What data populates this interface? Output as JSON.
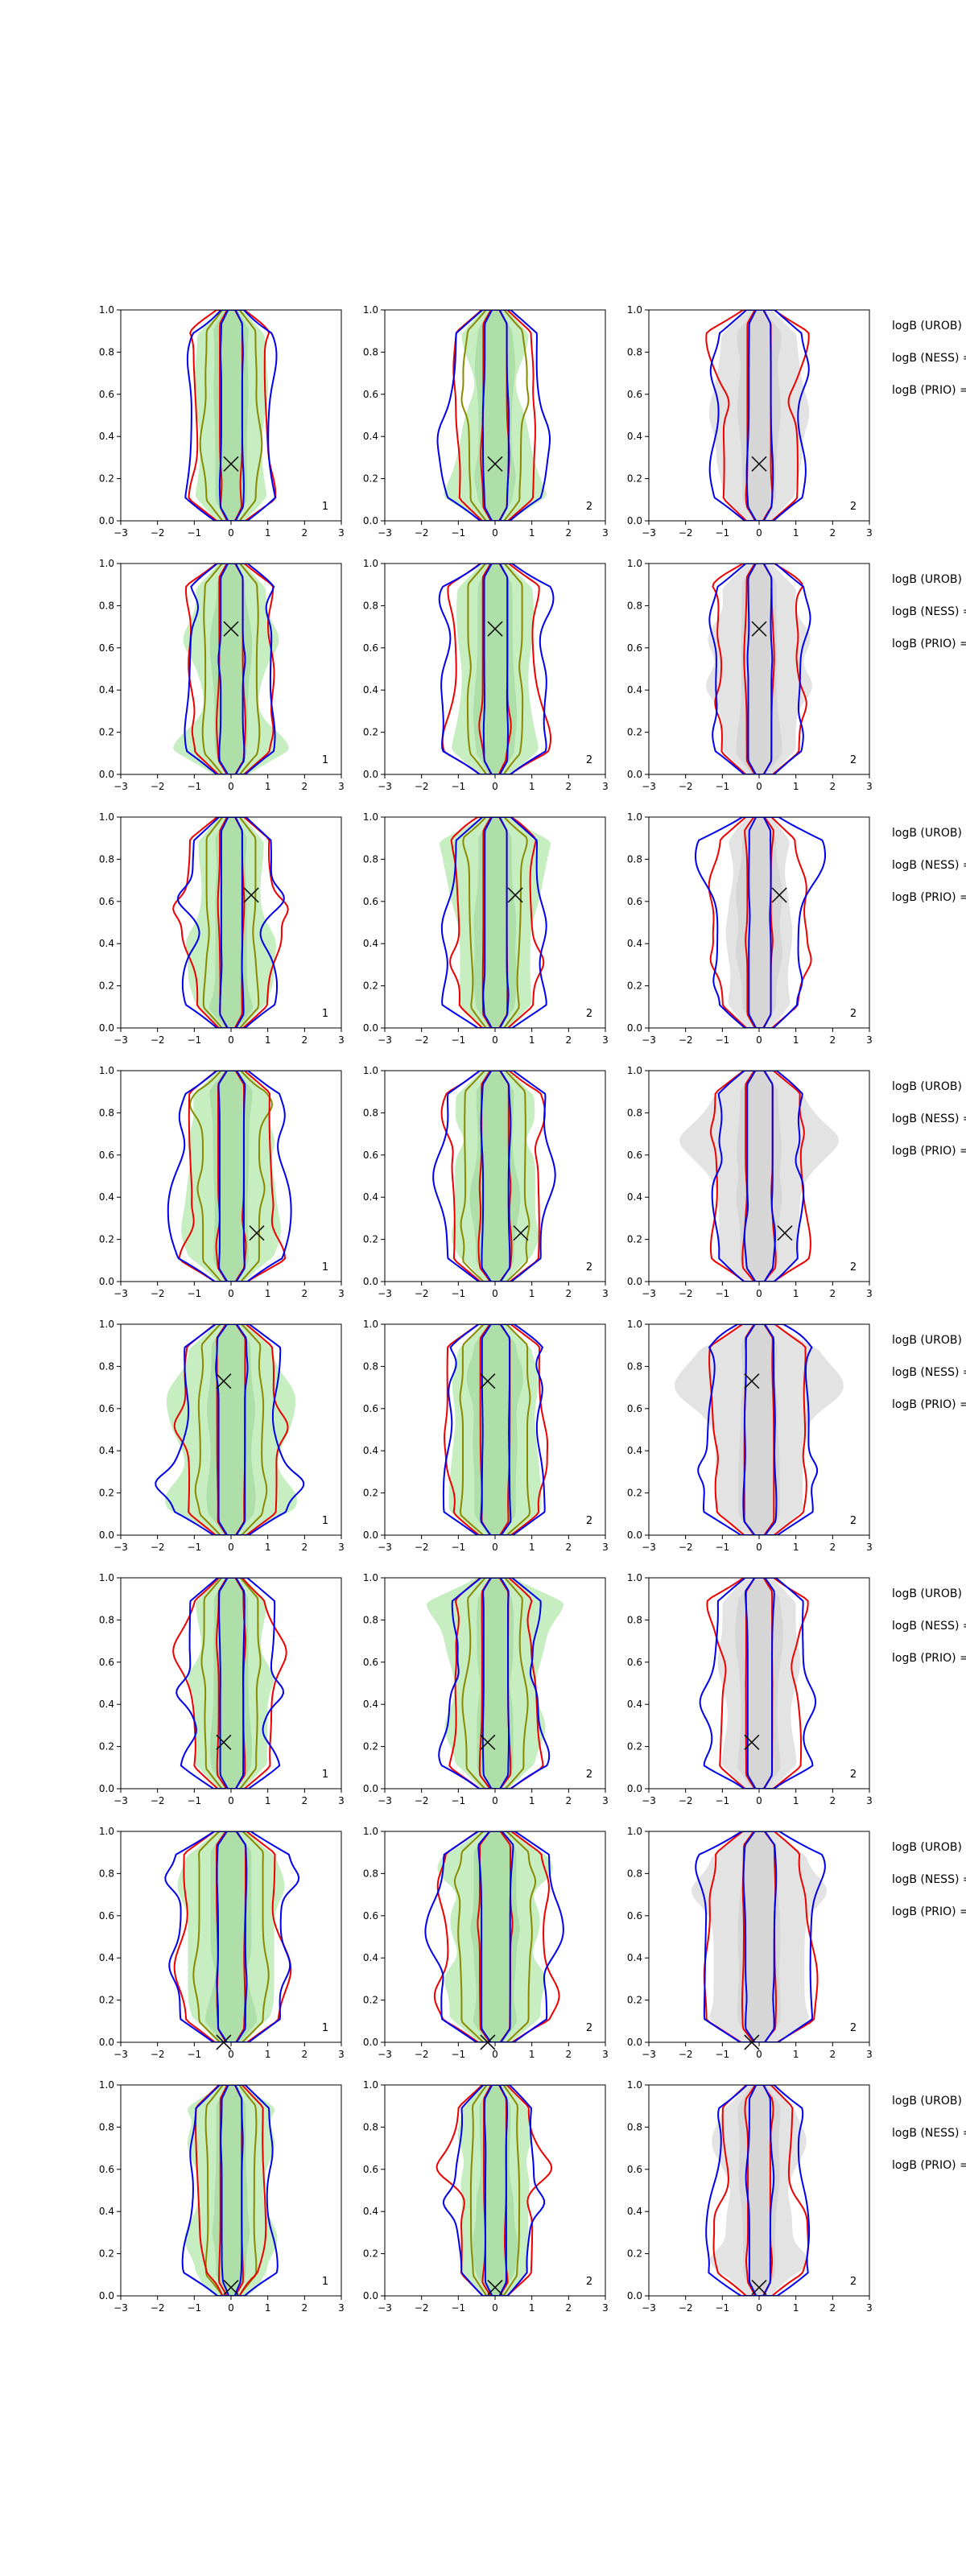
{
  "chart_data": {
    "type": "contour",
    "rows": 8,
    "cols": 3,
    "xlim": [
      -3,
      3
    ],
    "ylim": [
      0,
      1
    ],
    "xticks": [
      "−3",
      "−2",
      "−1",
      "0",
      "1",
      "2",
      "3"
    ],
    "yticks": [
      "0.0",
      "0.2",
      "0.4",
      "0.6",
      "0.8",
      "1.0"
    ],
    "colors": {
      "fill_green": "#c6eec1",
      "fill_gray": "#e3e3e3",
      "contour_blue": "#0000ee",
      "contour_red": "#ee0000",
      "contour_olive": "#8a8a00",
      "marker": "#111111"
    },
    "panel_labels": [
      [
        "1",
        "2",
        "2"
      ],
      [
        "1",
        "2",
        "2"
      ],
      [
        "1",
        "2",
        "2"
      ],
      [
        "1",
        "2",
        "2"
      ],
      [
        "1",
        "2",
        "2"
      ],
      [
        "1",
        "2",
        "2"
      ],
      [
        "1",
        "2",
        "2"
      ],
      [
        "1",
        "2",
        "2"
      ]
    ],
    "markers": [
      {
        "x": 0.0,
        "y": 0.27
      },
      {
        "x": 0.0,
        "y": 0.69
      },
      {
        "x": 0.55,
        "y": 0.63
      },
      {
        "x": 0.7,
        "y": 0.23
      },
      {
        "x": -0.2,
        "y": 0.73
      },
      {
        "x": -0.2,
        "y": 0.22
      },
      {
        "x": -0.2,
        "y": 0.0
      },
      {
        "x": 0.0,
        "y": 0.04
      }
    ],
    "side_text": [
      "logB (UROB) =",
      "logB (NESS) =",
      "logB (PRIO) ="
    ]
  }
}
